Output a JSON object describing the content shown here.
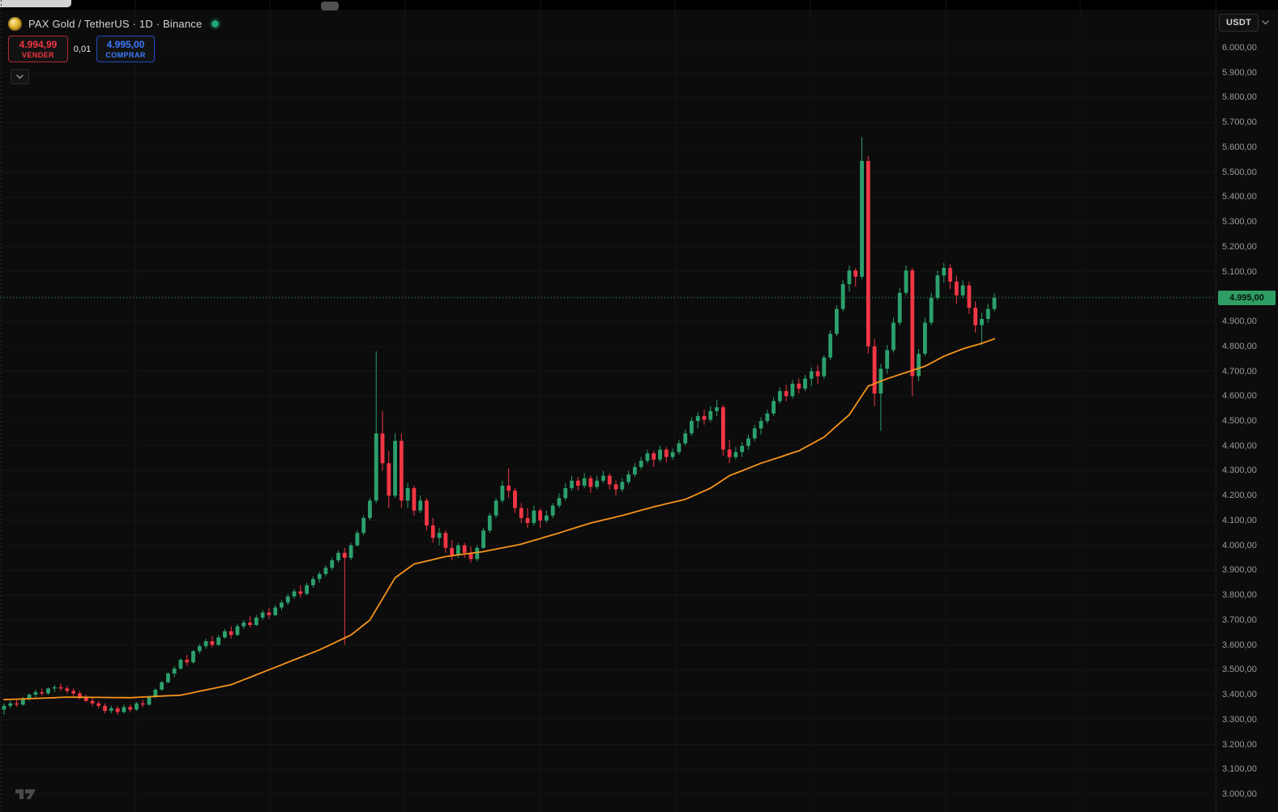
{
  "header": {
    "symbol_title": "PAX Gold / TetherUS · 1D · Binance",
    "sell": {
      "price": "4.994,99",
      "label": "VENDER"
    },
    "spread": "0,01",
    "buy": {
      "price": "4.995,00",
      "label": "COMPRAR"
    }
  },
  "toolbar": {
    "currency": "USDT"
  },
  "price_scale": {
    "labels": [
      {
        "t": "6.000,00",
        "v": 6000
      },
      {
        "t": "5.900,00",
        "v": 5900
      },
      {
        "t": "5.800,00",
        "v": 5800
      },
      {
        "t": "5.700,00",
        "v": 5700
      },
      {
        "t": "5.600,00",
        "v": 5600
      },
      {
        "t": "5.500,00",
        "v": 5500
      },
      {
        "t": "5.400,00",
        "v": 5400
      },
      {
        "t": "5.300,00",
        "v": 5300
      },
      {
        "t": "5.200,00",
        "v": 5200
      },
      {
        "t": "5.100,00",
        "v": 5100
      },
      {
        "t": "4.900,00",
        "v": 4900
      },
      {
        "t": "4.800,00",
        "v": 4800
      },
      {
        "t": "4.700,00",
        "v": 4700
      },
      {
        "t": "4.600,00",
        "v": 4600
      },
      {
        "t": "4.500,00",
        "v": 4500
      },
      {
        "t": "4.400,00",
        "v": 4400
      },
      {
        "t": "4.300,00",
        "v": 4300
      },
      {
        "t": "4.200,00",
        "v": 4200
      },
      {
        "t": "4.100,00",
        "v": 4100
      },
      {
        "t": "4.000,00",
        "v": 4000
      },
      {
        "t": "3.900,00",
        "v": 3900
      },
      {
        "t": "3.800,00",
        "v": 3800
      },
      {
        "t": "3.700,00",
        "v": 3700
      },
      {
        "t": "3.600,00",
        "v": 3600
      },
      {
        "t": "3.500,00",
        "v": 3500
      },
      {
        "t": "3.400,00",
        "v": 3400
      },
      {
        "t": "3.300,00",
        "v": 3300
      },
      {
        "t": "3.200,00",
        "v": 3200
      },
      {
        "t": "3.100,00",
        "v": 3100
      },
      {
        "t": "3.000,00",
        "v": 3000
      }
    ],
    "current": {
      "t": "4.995,00",
      "v": 4995
    }
  },
  "chart_data": {
    "type": "candlestick",
    "title": "PAX Gold / TetherUS · 1D · Binance",
    "interval": "1D",
    "exchange": "Binance",
    "ylim": [
      3000,
      6000
    ],
    "y_tick_step": 100,
    "grid": true,
    "last_price": 4995,
    "colors": {
      "up": "#2ca06c",
      "down": "#f23645",
      "ma": "#f7931a",
      "grid": "#151515",
      "price_line": "#2f9e64"
    },
    "candles": [
      [
        3340,
        3365,
        3320,
        3355
      ],
      [
        3355,
        3375,
        3345,
        3365
      ],
      [
        3365,
        3380,
        3350,
        3360
      ],
      [
        3360,
        3390,
        3355,
        3385
      ],
      [
        3385,
        3405,
        3375,
        3400
      ],
      [
        3400,
        3420,
        3390,
        3410
      ],
      [
        3410,
        3425,
        3395,
        3405
      ],
      [
        3405,
        3430,
        3400,
        3425
      ],
      [
        3425,
        3440,
        3410,
        3430
      ],
      [
        3430,
        3445,
        3415,
        3425
      ],
      [
        3425,
        3435,
        3405,
        3415
      ],
      [
        3415,
        3425,
        3395,
        3405
      ],
      [
        3405,
        3415,
        3380,
        3390
      ],
      [
        3390,
        3400,
        3370,
        3375
      ],
      [
        3375,
        3390,
        3355,
        3365
      ],
      [
        3365,
        3375,
        3345,
        3355
      ],
      [
        3355,
        3365,
        3325,
        3335
      ],
      [
        3335,
        3355,
        3325,
        3345
      ],
      [
        3345,
        3355,
        3320,
        3330
      ],
      [
        3330,
        3360,
        3325,
        3350
      ],
      [
        3350,
        3360,
        3330,
        3340
      ],
      [
        3340,
        3370,
        3335,
        3365
      ],
      [
        3365,
        3380,
        3350,
        3360
      ],
      [
        3360,
        3395,
        3355,
        3390
      ],
      [
        3390,
        3425,
        3385,
        3420
      ],
      [
        3420,
        3455,
        3415,
        3450
      ],
      [
        3450,
        3490,
        3445,
        3485
      ],
      [
        3485,
        3515,
        3470,
        3505
      ],
      [
        3505,
        3545,
        3500,
        3540
      ],
      [
        3540,
        3560,
        3515,
        3530
      ],
      [
        3530,
        3580,
        3525,
        3575
      ],
      [
        3575,
        3605,
        3565,
        3595
      ],
      [
        3595,
        3625,
        3585,
        3615
      ],
      [
        3615,
        3635,
        3590,
        3600
      ],
      [
        3600,
        3640,
        3595,
        3630
      ],
      [
        3630,
        3665,
        3625,
        3655
      ],
      [
        3655,
        3675,
        3625,
        3640
      ],
      [
        3640,
        3685,
        3635,
        3675
      ],
      [
        3675,
        3700,
        3665,
        3690
      ],
      [
        3690,
        3715,
        3670,
        3680
      ],
      [
        3680,
        3720,
        3675,
        3710
      ],
      [
        3710,
        3740,
        3700,
        3730
      ],
      [
        3730,
        3750,
        3705,
        3720
      ],
      [
        3720,
        3760,
        3715,
        3750
      ],
      [
        3750,
        3780,
        3740,
        3770
      ],
      [
        3770,
        3805,
        3760,
        3795
      ],
      [
        3795,
        3825,
        3785,
        3815
      ],
      [
        3815,
        3840,
        3790,
        3805
      ],
      [
        3805,
        3850,
        3800,
        3840
      ],
      [
        3840,
        3875,
        3830,
        3865
      ],
      [
        3865,
        3895,
        3850,
        3885
      ],
      [
        3885,
        3920,
        3875,
        3910
      ],
      [
        3910,
        3950,
        3900,
        3940
      ],
      [
        3940,
        3980,
        3930,
        3970
      ],
      [
        3970,
        3990,
        3600,
        3950
      ],
      [
        3950,
        4010,
        3940,
        4000
      ],
      [
        4000,
        4060,
        3995,
        4050
      ],
      [
        4050,
        4120,
        4040,
        4110
      ],
      [
        4110,
        4190,
        4100,
        4180
      ],
      [
        4180,
        4780,
        4170,
        4450
      ],
      [
        4450,
        4540,
        4300,
        4330
      ],
      [
        4330,
        4380,
        4150,
        4200
      ],
      [
        4200,
        4450,
        4190,
        4420
      ],
      [
        4420,
        4450,
        4150,
        4180
      ],
      [
        4180,
        4250,
        4150,
        4230
      ],
      [
        4230,
        4240,
        4120,
        4140
      ],
      [
        4140,
        4200,
        4130,
        4180
      ],
      [
        4180,
        4190,
        4060,
        4080
      ],
      [
        4080,
        4110,
        4010,
        4030
      ],
      [
        4030,
        4070,
        4000,
        4050
      ],
      [
        4050,
        4060,
        3970,
        3990
      ],
      [
        3990,
        4020,
        3940,
        3960
      ],
      [
        3960,
        4010,
        3950,
        4000
      ],
      [
        4000,
        4010,
        3950,
        3970
      ],
      [
        3970,
        3995,
        3930,
        3945
      ],
      [
        3945,
        4000,
        3935,
        3990
      ],
      [
        3990,
        4070,
        3985,
        4060
      ],
      [
        4060,
        4130,
        4050,
        4120
      ],
      [
        4120,
        4190,
        4110,
        4180
      ],
      [
        4180,
        4260,
        4170,
        4240
      ],
      [
        4240,
        4310,
        4190,
        4220
      ],
      [
        4220,
        4230,
        4130,
        4150
      ],
      [
        4150,
        4170,
        4090,
        4110
      ],
      [
        4110,
        4150,
        4070,
        4090
      ],
      [
        4090,
        4160,
        4080,
        4140
      ],
      [
        4140,
        4150,
        4070,
        4100
      ],
      [
        4100,
        4140,
        4090,
        4120
      ],
      [
        4120,
        4170,
        4110,
        4160
      ],
      [
        4160,
        4210,
        4150,
        4190
      ],
      [
        4190,
        4250,
        4180,
        4230
      ],
      [
        4230,
        4280,
        4220,
        4260
      ],
      [
        4260,
        4275,
        4220,
        4240
      ],
      [
        4240,
        4290,
        4230,
        4270
      ],
      [
        4270,
        4280,
        4210,
        4235
      ],
      [
        4235,
        4280,
        4225,
        4260
      ],
      [
        4260,
        4300,
        4250,
        4280
      ],
      [
        4280,
        4290,
        4225,
        4245
      ],
      [
        4245,
        4260,
        4200,
        4225
      ],
      [
        4225,
        4270,
        4215,
        4255
      ],
      [
        4255,
        4300,
        4245,
        4285
      ],
      [
        4285,
        4330,
        4275,
        4315
      ],
      [
        4315,
        4355,
        4305,
        4340
      ],
      [
        4340,
        4385,
        4330,
        4370
      ],
      [
        4370,
        4380,
        4315,
        4345
      ],
      [
        4345,
        4400,
        4335,
        4385
      ],
      [
        4385,
        4395,
        4335,
        4355
      ],
      [
        4355,
        4390,
        4345,
        4375
      ],
      [
        4375,
        4425,
        4365,
        4410
      ],
      [
        4410,
        4465,
        4400,
        4450
      ],
      [
        4450,
        4515,
        4440,
        4500
      ],
      [
        4500,
        4535,
        4470,
        4520
      ],
      [
        4520,
        4545,
        4485,
        4505
      ],
      [
        4505,
        4560,
        4495,
        4540
      ],
      [
        4540,
        4585,
        4520,
        4555
      ],
      [
        4555,
        4565,
        4360,
        4385
      ],
      [
        4385,
        4425,
        4330,
        4355
      ],
      [
        4355,
        4395,
        4345,
        4375
      ],
      [
        4375,
        4415,
        4355,
        4400
      ],
      [
        4400,
        4445,
        4385,
        4430
      ],
      [
        4430,
        4485,
        4420,
        4470
      ],
      [
        4470,
        4515,
        4445,
        4500
      ],
      [
        4500,
        4545,
        4490,
        4530
      ],
      [
        4530,
        4595,
        4520,
        4580
      ],
      [
        4580,
        4635,
        4570,
        4620
      ],
      [
        4620,
        4645,
        4580,
        4600
      ],
      [
        4600,
        4665,
        4590,
        4650
      ],
      [
        4650,
        4670,
        4610,
        4630
      ],
      [
        4630,
        4685,
        4620,
        4670
      ],
      [
        4670,
        4715,
        4640,
        4700
      ],
      [
        4700,
        4725,
        4650,
        4680
      ],
      [
        4680,
        4765,
        4670,
        4755
      ],
      [
        4755,
        4865,
        4745,
        4850
      ],
      [
        4850,
        4965,
        4840,
        4950
      ],
      [
        4950,
        5065,
        4940,
        5050
      ],
      [
        5050,
        5125,
        5020,
        5105
      ],
      [
        5105,
        5115,
        5040,
        5080
      ],
      [
        5080,
        5640,
        5070,
        5545
      ],
      [
        5545,
        5565,
        4770,
        4800
      ],
      [
        4800,
        4830,
        4560,
        4610
      ],
      [
        4610,
        4730,
        4460,
        4710
      ],
      [
        4710,
        4805,
        4690,
        4785
      ],
      [
        4785,
        4915,
        4775,
        4895
      ],
      [
        4895,
        5035,
        4885,
        5015
      ],
      [
        5015,
        5125,
        5005,
        5105
      ],
      [
        5105,
        5115,
        4600,
        4680
      ],
      [
        4680,
        4790,
        4660,
        4770
      ],
      [
        4770,
        4915,
        4760,
        4895
      ],
      [
        4895,
        5015,
        4885,
        4995
      ],
      [
        4995,
        5105,
        4985,
        5085
      ],
      [
        5085,
        5135,
        5055,
        5115
      ],
      [
        5115,
        5130,
        5030,
        5060
      ],
      [
        5060,
        5085,
        4970,
        5005
      ],
      [
        5005,
        5065,
        4995,
        5045
      ],
      [
        5045,
        5060,
        4930,
        4955
      ],
      [
        4955,
        4980,
        4855,
        4885
      ],
      [
        4885,
        4935,
        4805,
        4910
      ],
      [
        4910,
        4970,
        4895,
        4950
      ],
      [
        4950,
        5015,
        4940,
        4995
      ]
    ],
    "ma_line": {
      "name": "MA",
      "color": "#f7931a",
      "points": [
        [
          0,
          3380
        ],
        [
          10,
          3390
        ],
        [
          20,
          3388
        ],
        [
          28,
          3398
        ],
        [
          36,
          3440
        ],
        [
          44,
          3520
        ],
        [
          50,
          3580
        ],
        [
          55,
          3640
        ],
        [
          58,
          3700
        ],
        [
          62,
          3870
        ],
        [
          65,
          3925
        ],
        [
          70,
          3955
        ],
        [
          76,
          3975
        ],
        [
          82,
          4005
        ],
        [
          88,
          4050
        ],
        [
          93,
          4090
        ],
        [
          98,
          4120
        ],
        [
          103,
          4155
        ],
        [
          108,
          4185
        ],
        [
          112,
          4230
        ],
        [
          115,
          4280
        ],
        [
          120,
          4330
        ],
        [
          126,
          4380
        ],
        [
          130,
          4435
        ],
        [
          134,
          4525
        ],
        [
          137,
          4640
        ],
        [
          140,
          4670
        ],
        [
          143,
          4695
        ],
        [
          146,
          4720
        ],
        [
          149,
          4760
        ],
        [
          152,
          4790
        ],
        [
          155,
          4812
        ],
        [
          157,
          4830
        ]
      ]
    }
  }
}
